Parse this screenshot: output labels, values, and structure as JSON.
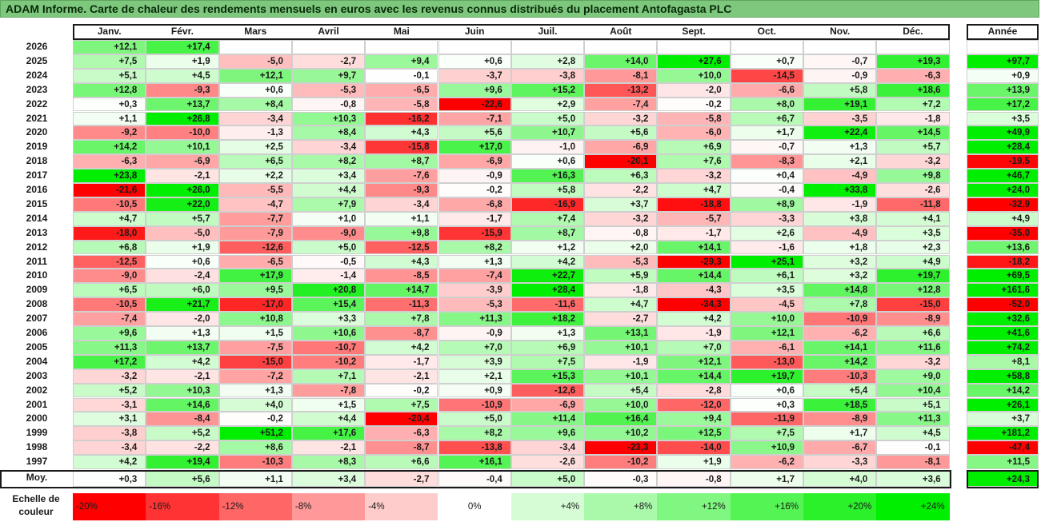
{
  "title": "ADAM Informe. Carte de chaleur des rendements mensuels en euros avec les revenus connus distribués du placement Antofagasta PLC",
  "chart_data": {
    "type": "heatmap",
    "months": [
      "Janv.",
      "Févr.",
      "Mars",
      "Avril",
      "Mai",
      "Juin",
      "Juil.",
      "Août",
      "Sept.",
      "Oct.",
      "Nov.",
      "Déc."
    ],
    "annual_header": "Année",
    "rows": [
      {
        "year": "2026",
        "values": [
          "+12,1",
          "+17,4",
          "",
          "",
          "",
          "",
          "",
          "",
          "",
          "",
          "",
          ""
        ],
        "annual": ""
      },
      {
        "year": "2025",
        "values": [
          "+7,5",
          "+1,9",
          "-5,0",
          "-2,7",
          "+9,4",
          "+0,6",
          "+2,8",
          "+14,0",
          "+27,6",
          "+0,7",
          "-0,7",
          "+19,3"
        ],
        "annual": "+97,7"
      },
      {
        "year": "2024",
        "values": [
          "+5,1",
          "+4,5",
          "+12,1",
          "+9,7",
          "-0,1",
          "-3,7",
          "-3,8",
          "-8,1",
          "+10,0",
          "-14,5",
          "-0,9",
          "-6,3"
        ],
        "annual": "+0,9"
      },
      {
        "year": "2023",
        "values": [
          "+12,8",
          "-9,3",
          "+0,6",
          "-5,3",
          "-6,5",
          "+9,6",
          "+15,2",
          "-13,2",
          "-2,0",
          "-6,6",
          "+5,8",
          "+18,6"
        ],
        "annual": "+13,9"
      },
      {
        "year": "2022",
        "values": [
          "+0,3",
          "+13,7",
          "+8,4",
          "-0,8",
          "-5,8",
          "-22,6",
          "+2,9",
          "-7,4",
          "-0,2",
          "+8,0",
          "+19,1",
          "+7,2"
        ],
        "annual": "+17,2"
      },
      {
        "year": "2021",
        "values": [
          "+1,1",
          "+26,8",
          "-3,4",
          "+10,3",
          "-16,2",
          "-7,1",
          "+5,0",
          "-3,2",
          "-5,8",
          "+6,7",
          "-3,5",
          "-1,8"
        ],
        "annual": "+3,5"
      },
      {
        "year": "2020",
        "values": [
          "-9,2",
          "-10,0",
          "-1,3",
          "+8,4",
          "+4,3",
          "+5,6",
          "+10,7",
          "+5,6",
          "-6,0",
          "+1,7",
          "+22,4",
          "+14,5"
        ],
        "annual": "+49,9"
      },
      {
        "year": "2019",
        "values": [
          "+14,2",
          "+10,1",
          "+2,5",
          "-3,4",
          "-15,8",
          "+17,0",
          "-1,0",
          "-6,9",
          "+6,9",
          "-0,7",
          "+1,3",
          "+5,7"
        ],
        "annual": "+28,4"
      },
      {
        "year": "2018",
        "values": [
          "-6,3",
          "-6,9",
          "+6,5",
          "+8,2",
          "+8,7",
          "-6,9",
          "+0,6",
          "-20,1",
          "+7,6",
          "-8,3",
          "+2,1",
          "-3,2"
        ],
        "annual": "-19,5"
      },
      {
        "year": "2017",
        "values": [
          "+23,8",
          "-2,1",
          "+2,2",
          "+3,4",
          "-7,6",
          "-0,9",
          "+16,3",
          "+6,3",
          "-3,2",
          "+0,4",
          "-4,9",
          "+9,8"
        ],
        "annual": "+46,7"
      },
      {
        "year": "2016",
        "values": [
          "-21,6",
          "+26,0",
          "-5,5",
          "+4,4",
          "-9,3",
          "-0,2",
          "+5,8",
          "-2,2",
          "+4,7",
          "-0,4",
          "+33,8",
          "-2,6"
        ],
        "annual": "+24,0"
      },
      {
        "year": "2015",
        "values": [
          "-10,5",
          "+22,0",
          "-4,7",
          "+7,9",
          "-3,4",
          "-6,8",
          "-16,9",
          "+3,7",
          "-18,8",
          "+8,9",
          "-1,9",
          "-11,8"
        ],
        "annual": "-32,9"
      },
      {
        "year": "2014",
        "values": [
          "+4,7",
          "+5,7",
          "-7,7",
          "+1,0",
          "+1,1",
          "-1,7",
          "+7,4",
          "-3,2",
          "-5,7",
          "-3,3",
          "+3,8",
          "+4,1"
        ],
        "annual": "+4,9"
      },
      {
        "year": "2013",
        "values": [
          "-18,0",
          "-5,0",
          "-7,9",
          "-9,0",
          "+9,8",
          "-15,9",
          "+8,7",
          "-0,8",
          "-1,7",
          "+2,6",
          "-4,9",
          "+3,5"
        ],
        "annual": "-35,0"
      },
      {
        "year": "2012",
        "values": [
          "+6,8",
          "+1,9",
          "-12,6",
          "+5,0",
          "-12,5",
          "+8,2",
          "+1,2",
          "+2,0",
          "+14,1",
          "-1,6",
          "+1,8",
          "+2,3"
        ],
        "annual": "+13,6"
      },
      {
        "year": "2011",
        "values": [
          "-12,5",
          "+0,6",
          "-6,5",
          "-0,5",
          "+4,3",
          "+1,3",
          "+4,2",
          "-5,3",
          "-29,3",
          "+25,1",
          "+3,2",
          "+4,9"
        ],
        "annual": "-18,2"
      },
      {
        "year": "2010",
        "values": [
          "-9,0",
          "-2,4",
          "+17,9",
          "-1,4",
          "-8,5",
          "-7,4",
          "+22,7",
          "+5,9",
          "+14,4",
          "+6,1",
          "+3,2",
          "+19,7"
        ],
        "annual": "+69,5"
      },
      {
        "year": "2009",
        "values": [
          "+6,5",
          "+6,0",
          "+9,5",
          "+20,8",
          "+14,7",
          "-3,9",
          "+28,4",
          "-1,8",
          "-4,3",
          "+3,5",
          "+14,8",
          "+12,8"
        ],
        "annual": "+161,6"
      },
      {
        "year": "2008",
        "values": [
          "-10,5",
          "+21,7",
          "-17,0",
          "+15,4",
          "-11,3",
          "-5,3",
          "-11,6",
          "+4,7",
          "-34,3",
          "-4,5",
          "+7,8",
          "-15,0"
        ],
        "annual": "-52,0"
      },
      {
        "year": "2007",
        "values": [
          "-7,4",
          "-2,0",
          "+10,8",
          "+3,3",
          "+7,8",
          "+11,3",
          "+18,2",
          "-2,7",
          "+4,2",
          "+10,0",
          "-10,9",
          "-8,9"
        ],
        "annual": "+32,6"
      },
      {
        "year": "2006",
        "values": [
          "+9,6",
          "+1,3",
          "+1,5",
          "+10,6",
          "-8,7",
          "-0,9",
          "+1,3",
          "+13,1",
          "-1,9",
          "+12,1",
          "-6,2",
          "+6,6"
        ],
        "annual": "+41,6"
      },
      {
        "year": "2005",
        "values": [
          "+11,3",
          "+13,7",
          "-7,5",
          "-10,7",
          "+4,2",
          "+7,0",
          "+6,9",
          "+10,1",
          "+7,0",
          "-6,1",
          "+14,1",
          "+11,6"
        ],
        "annual": "+74,2"
      },
      {
        "year": "2004",
        "values": [
          "+17,2",
          "+4,2",
          "-15,0",
          "-10,2",
          "-1,7",
          "+3,9",
          "+7,5",
          "-1,9",
          "+12,1",
          "-13,0",
          "+14,2",
          "-3,2"
        ],
        "annual": "+8,1"
      },
      {
        "year": "2003",
        "values": [
          "-3,2",
          "-2,1",
          "-7,2",
          "+7,1",
          "-2,1",
          "+2,1",
          "+15,3",
          "+10,1",
          "+14,4",
          "+19,7",
          "-10,3",
          "+9,0"
        ],
        "annual": "+58,8"
      },
      {
        "year": "2002",
        "values": [
          "+5,2",
          "+10,3",
          "+1,3",
          "-7,8",
          "-0,2",
          "+0,9",
          "-12,6",
          "+5,4",
          "-2,8",
          "+0,6",
          "+5,4",
          "+10,4"
        ],
        "annual": "+14,2"
      },
      {
        "year": "2001",
        "values": [
          "-3,1",
          "+14,6",
          "+4,0",
          "+1,5",
          "+7,5",
          "-10,9",
          "-6,9",
          "+10,0",
          "-12,0",
          "+0,3",
          "+18,5",
          "+5,1"
        ],
        "annual": "+26,1"
      },
      {
        "year": "2000",
        "values": [
          "+3,1",
          "-8,4",
          "-0,2",
          "+4,4",
          "-20,4",
          "+5,0",
          "+11,4",
          "+16,4",
          "+9,4",
          "-11,9",
          "-8,9",
          "+11,3"
        ],
        "annual": "+3,7"
      },
      {
        "year": "1999",
        "values": [
          "-3,8",
          "+5,2",
          "+51,2",
          "+17,6",
          "-6,3",
          "+8,2",
          "+9,6",
          "+10,2",
          "+12,5",
          "+7,5",
          "+1,7",
          "+4,5"
        ],
        "annual": "+181,2"
      },
      {
        "year": "1998",
        "values": [
          "-3,4",
          "-2,2",
          "+8,6",
          "-2,1",
          "-8,7",
          "-13,8",
          "-3,4",
          "-23,3",
          "-14,0",
          "+10,9",
          "-6,7",
          "-0,1"
        ],
        "annual": "-47,4"
      },
      {
        "year": "1997",
        "values": [
          "+4,2",
          "+19,4",
          "-10,3",
          "+8,3",
          "+6,6",
          "+16,1",
          "-2,6",
          "-10,2",
          "+1,9",
          "-6,2",
          "-3,3",
          "-8,1"
        ],
        "annual": "+11,5"
      }
    ],
    "average": {
      "label": "Moy.",
      "values": [
        "+0,3",
        "+5,6",
        "+1,1",
        "+3,4",
        "-2,7",
        "-0,4",
        "+5,0",
        "-0,3",
        "-0,8",
        "+1,7",
        "+4,0",
        "+3,6"
      ],
      "annual": "+24,3"
    },
    "color_scale": {
      "label": "Echelle de couleur",
      "steps": [
        {
          "label": "-20%",
          "value": -20
        },
        {
          "label": "-16%",
          "value": -16
        },
        {
          "label": "-12%",
          "value": -12
        },
        {
          "label": "-8%",
          "value": -8
        },
        {
          "label": "-4%",
          "value": -4
        },
        {
          "label": "0%",
          "value": 0
        },
        {
          "label": "+4%",
          "value": 4
        },
        {
          "label": "+8%",
          "value": 8
        },
        {
          "label": "+12%",
          "value": 12
        },
        {
          "label": "+16%",
          "value": 16
        },
        {
          "label": "+20%",
          "value": 20
        },
        {
          "label": "+24%",
          "value": 24
        }
      ],
      "colors": {
        "negative_max": "#ff0000",
        "neutral": "#ffffff",
        "positive_max": "#00ee00"
      }
    }
  }
}
